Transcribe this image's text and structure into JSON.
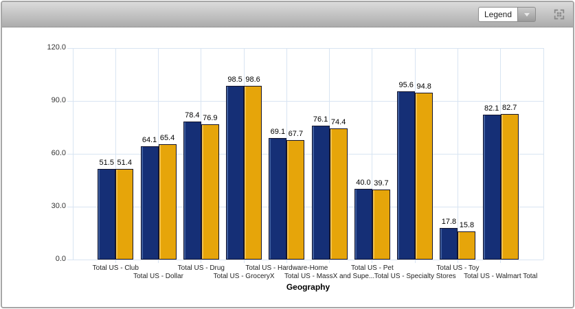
{
  "toolbar": {
    "legend_dropdown_value": "Legend"
  },
  "chart_data": {
    "type": "bar",
    "title": "",
    "xlabel": "Geography",
    "ylabel": "",
    "ylim": [
      0,
      120
    ],
    "yticks": [
      0,
      30,
      60,
      90,
      120
    ],
    "ytick_labels": [
      "0.0",
      "30.0",
      "60.0",
      "90.0",
      "120.0"
    ],
    "grid": true,
    "gridline_color": "#d8e4f2",
    "axis_text_color": "#333333",
    "value_labels": true,
    "legend_position": "collapsed-dropdown",
    "categories": [
      "Total US - Club",
      "Total US - Dollar",
      "Total US - Drug",
      "Total US - GroceryX",
      "Total US - Hardware-Home",
      "Total US - MassX and Supe...",
      "Total US - Pet",
      "Total US - Specialty Stores",
      "Total US - Toy",
      "Total US - Walmart Total"
    ],
    "series": [
      {
        "name": "blue-series",
        "color": "#152f76",
        "highlight": "#41609f",
        "values": [
          51.5,
          64.1,
          78.4,
          98.5,
          69.1,
          76.1,
          40.0,
          95.6,
          17.8,
          82.1
        ]
      },
      {
        "name": "gold-series",
        "color": "#e6a50a",
        "highlight": "#f2c24d",
        "values": [
          51.4,
          65.4,
          76.9,
          98.6,
          67.7,
          74.4,
          39.7,
          94.8,
          15.8,
          82.7
        ]
      }
    ]
  }
}
